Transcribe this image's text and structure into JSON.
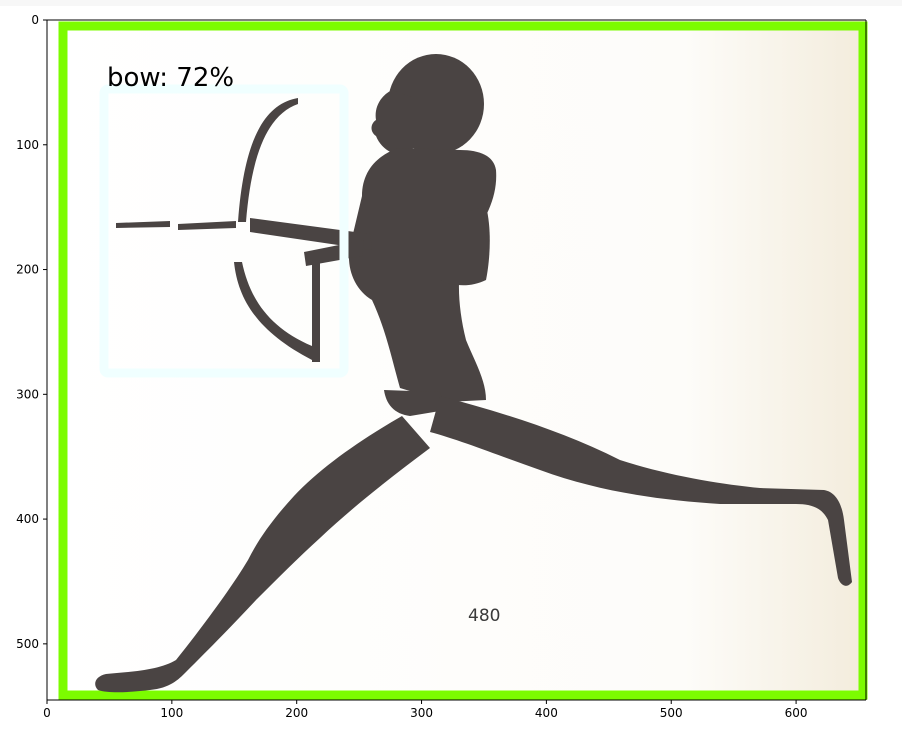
{
  "chart_data": {
    "type": "image",
    "xlim": [
      0,
      656
    ],
    "ylim": [
      545,
      0
    ],
    "x_ticks": [
      0,
      100,
      200,
      300,
      400,
      500,
      600
    ],
    "y_ticks": [
      0,
      100,
      200,
      300,
      400,
      500
    ],
    "detections": [
      {
        "label": "bow: 72%",
        "box": {
          "x_min": 45,
          "y_min": 55,
          "x_max": 240,
          "y_max": 285
        },
        "color": "#f0ffff"
      }
    ],
    "image_border_color": "#7cfc00",
    "image_text": "480"
  },
  "colors": {
    "silhouette": "#4a4443",
    "paper": "#fbf9f3",
    "paper_edge": "#f2ead8"
  }
}
